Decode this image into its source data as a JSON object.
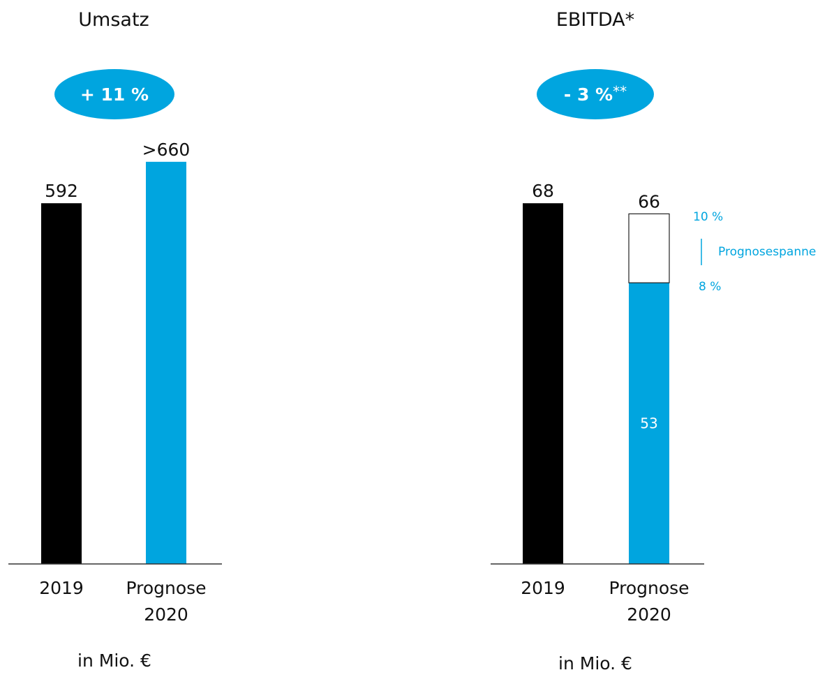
{
  "colors": {
    "accent": "#00a5df",
    "bar_dark": "#000000",
    "axis": "#333333",
    "text": "#111111"
  },
  "chart_data": [
    {
      "type": "bar",
      "title": "Umsatz",
      "badge": {
        "main": "+ 11 %",
        "suffix": ""
      },
      "categories": [
        "2019",
        "Prognose 2020"
      ],
      "category_lines": [
        [
          "2019"
        ],
        [
          "Prognose",
          "2020"
        ]
      ],
      "values": [
        592,
        660
      ],
      "value_labels": [
        "592",
        ">660"
      ],
      "bar_colors": [
        "#000000",
        "#00a5df"
      ],
      "unit": "in Mio. €",
      "ylim": [
        0,
        700
      ],
      "grid": false
    },
    {
      "type": "bar",
      "title": "EBITDA*",
      "badge": {
        "main": "- 3 %",
        "suffix": "**"
      },
      "categories": [
        "2019",
        "Prognose 2020"
      ],
      "category_lines": [
        [
          "2019"
        ],
        [
          "Prognose",
          "2020"
        ]
      ],
      "values": [
        68,
        66
      ],
      "value_labels": [
        "68",
        "66"
      ],
      "bar_colors": [
        "#000000",
        "#00a5df"
      ],
      "forecast_range": {
        "low": 53,
        "high": 66,
        "low_label": "8 %",
        "high_label": "10 %",
        "inner_label": "53",
        "range_label": "Prognosespanne"
      },
      "unit": "in Mio. €",
      "ylim": [
        0,
        80
      ],
      "grid": false
    }
  ]
}
